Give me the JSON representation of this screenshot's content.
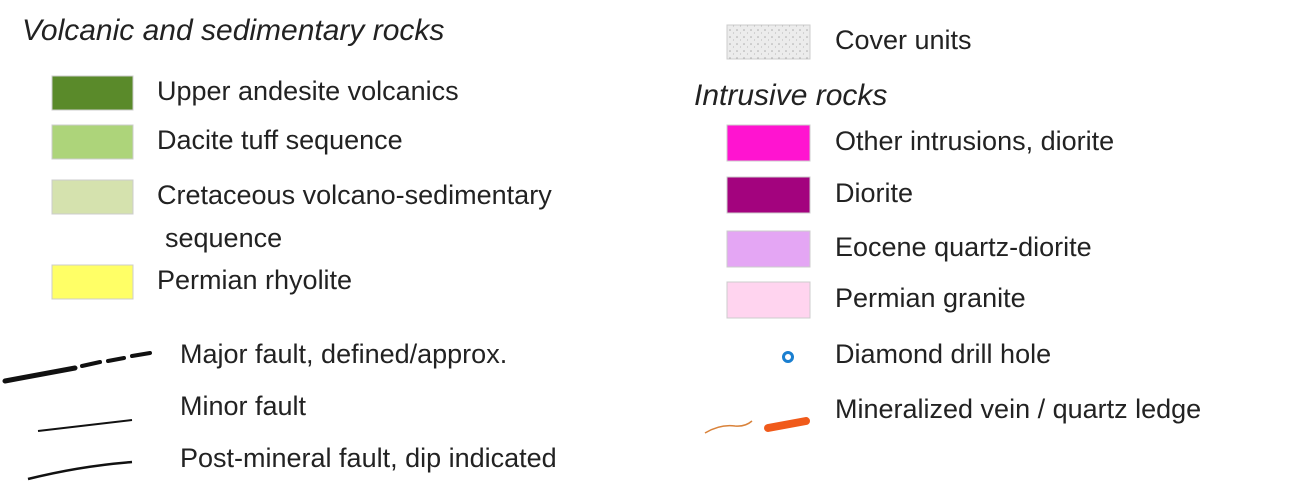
{
  "legend": {
    "left": {
      "title": "Volcanic and sedimentary rocks",
      "units": [
        {
          "label": "Upper andesite volcanics",
          "color": "#5a8a2a"
        },
        {
          "label": "Dacite tuff sequence",
          "color": "#add47a"
        },
        {
          "label": [
            "Cretaceous volcano-sedimentary",
            "sequence"
          ],
          "color": "#d5e2ae"
        },
        {
          "label": "Permian rhyolite",
          "color": "#ffff66"
        }
      ],
      "faults": [
        {
          "label": "Major fault, defined/approx."
        },
        {
          "label": "Minor fault"
        },
        {
          "label": "Post-mineral fault, dip indicated"
        }
      ]
    },
    "right": {
      "cover": {
        "label": "Cover units",
        "color": "#ececec"
      },
      "title": "Intrusive rocks",
      "units": [
        {
          "label": "Other intrusions, diorite",
          "color": "#ff14d0"
        },
        {
          "label": "Diorite",
          "color": "#a3037e"
        },
        {
          "label": "Eocene quartz-diorite",
          "color": "#e4a6f4"
        },
        {
          "label": "Permian granite",
          "color": "#ffd4ef"
        }
      ],
      "symbols": [
        {
          "label": "Diamond drill hole"
        },
        {
          "label": "Mineralized vein / quartz ledge"
        }
      ]
    }
  }
}
